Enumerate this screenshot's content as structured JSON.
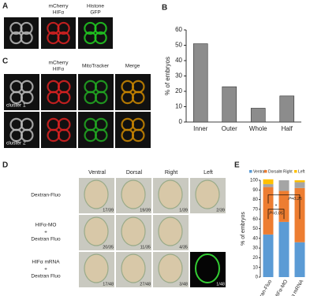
{
  "panels": {
    "a": {
      "label": "A",
      "headers": [
        [
          "mCherry",
          "HIFα"
        ],
        [
          "Histone",
          "GFP"
        ]
      ]
    },
    "b": {
      "label": "B"
    },
    "c": {
      "label": "C",
      "headers": [
        [
          "mCherry",
          "HIFα"
        ],
        [
          "MitoTracker"
        ],
        [
          "Merge"
        ]
      ],
      "rows": [
        "cluster 1",
        "cluster 2"
      ]
    },
    "d": {
      "label": "D",
      "columns": [
        "Ventral",
        "Dorsal",
        "Right",
        "Left"
      ],
      "rows": [
        [
          "Dextran-Fluo"
        ],
        [
          "HIFα-MO",
          "+",
          "Dextran Fluo"
        ],
        [
          "HIFα mRNA",
          "+",
          "Dextran Fluo"
        ]
      ],
      "counts": [
        [
          "17/39",
          "19/39",
          "1/39",
          "2/39"
        ],
        [
          "20/35",
          "11/35",
          "4/35"
        ],
        [
          "17/48",
          "27/48",
          "3/48",
          "1/48"
        ]
      ]
    },
    "e": {
      "label": "E"
    }
  },
  "chart_data": [
    {
      "type": "bar",
      "y_label": "% of embryos",
      "categories": [
        "Inner",
        "Outer",
        "Whole",
        "Half"
      ],
      "values": [
        51,
        23,
        9,
        17
      ],
      "color": "#8c8c8c",
      "ylim": [
        0,
        60
      ],
      "yticks": [
        0,
        10,
        20,
        30,
        40,
        50,
        60
      ]
    },
    {
      "type": "stacked_bar",
      "y_label": "% of embryos",
      "categories": [
        "Dextran-Fluo",
        "HIFα-MO",
        "HIFα mRNA"
      ],
      "series": [
        {
          "name": "Ventral",
          "color": "#5b9bd5",
          "values": [
            44,
            57,
            36
          ]
        },
        {
          "name": "Dorsal",
          "color": "#ed7d31",
          "values": [
            49,
            32,
            56
          ]
        },
        {
          "name": "Right",
          "color": "#a5a5a5",
          "values": [
            3,
            11,
            6
          ]
        },
        {
          "name": "Left",
          "color": "#ffc000",
          "values": [
            5,
            0,
            2
          ]
        }
      ],
      "ylim": [
        0,
        100
      ],
      "yticks": [
        0,
        10,
        20,
        30,
        40,
        50,
        60,
        70,
        80,
        90,
        100
      ],
      "legend": "top",
      "annotations": [
        "*",
        "P=0.05",
        "P=0.25"
      ]
    }
  ]
}
